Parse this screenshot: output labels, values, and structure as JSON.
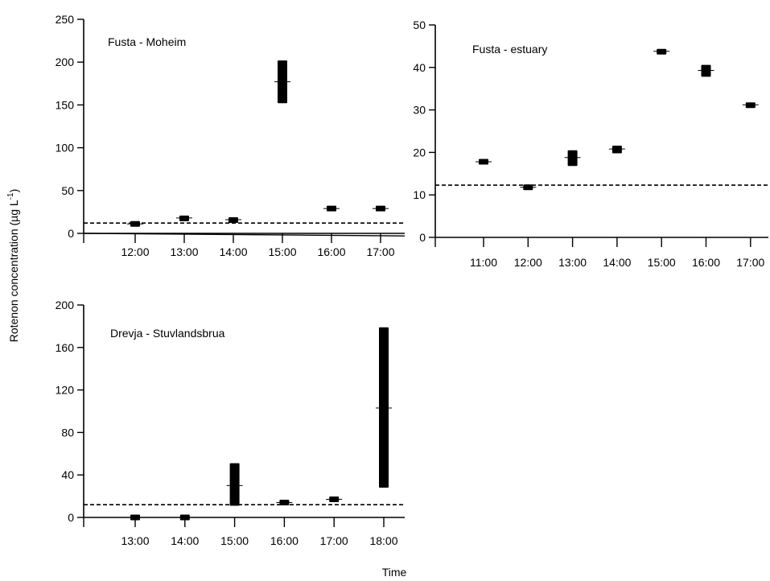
{
  "figure": {
    "ylabel": "Rotenon concentration (µg L",
    "ylabel_sup": "-1",
    "ylabel_tail": ")",
    "xlabel": "Time"
  },
  "chart_data": [
    {
      "type": "scatter",
      "title": "Fusta - Moheim",
      "categories": [
        "12:00",
        "13:00",
        "14:00",
        "15:00",
        "16:00",
        "17:00"
      ],
      "ylim": [
        0,
        250
      ],
      "yticks": [
        0,
        50,
        100,
        150,
        200,
        250
      ],
      "series": [
        {
          "values": [
            {
              "x": "12:00",
              "mid": 11,
              "low": 10,
              "high": 12
            },
            {
              "x": "13:00",
              "mid": 18,
              "low": 16,
              "high": 19
            },
            {
              "x": "14:00",
              "mid": 16,
              "low": 14,
              "high": 17
            },
            {
              "x": "15:00",
              "mid": 177,
              "low": 152,
              "high": 202
            },
            {
              "x": "16:00",
              "mid": 29,
              "low": 28,
              "high": 30
            },
            {
              "x": "17:00",
              "mid": 29,
              "low": 28,
              "high": 30
            }
          ]
        }
      ],
      "threshold": 12,
      "baseline": {
        "from": 0,
        "to": -3
      }
    },
    {
      "type": "scatter",
      "title": "Fusta - estuary",
      "categories": [
        "11:00",
        "12:00",
        "13:00",
        "14:00",
        "15:00",
        "16:00",
        "17:00"
      ],
      "ylim": [
        0,
        50
      ],
      "yticks": [
        0,
        10,
        20,
        30,
        40,
        50
      ],
      "series": [
        {
          "values": [
            {
              "x": "11:00",
              "mid": 17.8,
              "low": 17.2,
              "high": 18.4
            },
            {
              "x": "12:00",
              "mid": 11.8,
              "low": 11.2,
              "high": 12.4
            },
            {
              "x": "13:00",
              "mid": 18.8,
              "low": 16.8,
              "high": 20.5
            },
            {
              "x": "14:00",
              "mid": 20.8,
              "low": 19.8,
              "high": 21.6
            },
            {
              "x": "15:00",
              "mid": 43.8,
              "low": 43.2,
              "high": 44.2
            },
            {
              "x": "16:00",
              "mid": 39.3,
              "low": 37.8,
              "high": 40.6
            },
            {
              "x": "17:00",
              "mid": 31.2,
              "low": 30.6,
              "high": 31.6
            }
          ]
        }
      ],
      "threshold": 12.3
    },
    {
      "type": "scatter",
      "title": "Drevja - Stuvlandsbrua",
      "categories": [
        "13:00",
        "14:00",
        "15:00",
        "16:00",
        "17:00",
        "18:00"
      ],
      "ylim": [
        0,
        200
      ],
      "yticks": [
        0,
        40,
        80,
        120,
        160,
        200
      ],
      "series": [
        {
          "values": [
            {
              "x": "13:00",
              "mid": 0,
              "low": -1.5,
              "high": 1.5
            },
            {
              "x": "14:00",
              "mid": 0,
              "low": -1.5,
              "high": 1.5
            },
            {
              "x": "15:00",
              "mid": 30,
              "low": 11,
              "high": 51
            },
            {
              "x": "16:00",
              "mid": 14,
              "low": 12,
              "high": 16
            },
            {
              "x": "17:00",
              "mid": 17,
              "low": 15,
              "high": 19
            },
            {
              "x": "18:00",
              "mid": 103,
              "low": 28,
              "high": 179
            }
          ]
        }
      ],
      "threshold": 12
    }
  ]
}
